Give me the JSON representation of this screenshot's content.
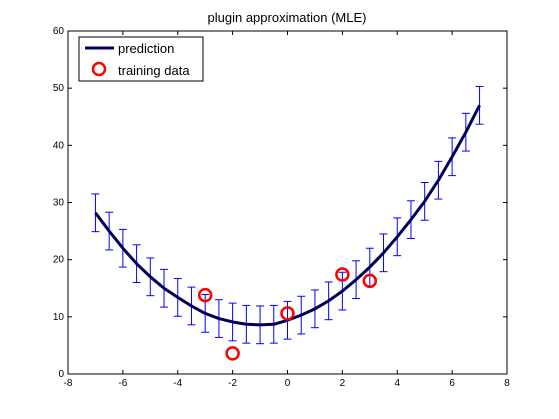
{
  "chart_data": {
    "type": "line",
    "title": "plugin approximation (MLE)",
    "xlabel": "",
    "ylabel": "",
    "xlim": [
      -8,
      8
    ],
    "ylim": [
      0,
      60
    ],
    "xticks": [
      -8,
      -6,
      -4,
      -2,
      0,
      2,
      4,
      6,
      8
    ],
    "yticks": [
      0,
      10,
      20,
      30,
      40,
      50,
      60
    ],
    "grid": false,
    "legend_position": "top-left",
    "series": [
      {
        "name": "prediction",
        "style": "line-with-errorbars",
        "color": "#00005a",
        "errorbar_color": "#0000ff",
        "x": [
          -7.0,
          -6.5,
          -6.0,
          -5.5,
          -5.0,
          -4.5,
          -4.0,
          -3.5,
          -3.0,
          -2.5,
          -2.0,
          -1.5,
          -1.0,
          -0.5,
          0.0,
          0.5,
          1.0,
          1.5,
          2.0,
          2.5,
          3.0,
          3.5,
          4.0,
          4.5,
          5.0,
          5.5,
          6.0,
          6.5,
          7.0
        ],
        "y": [
          28.2,
          25.0,
          22.0,
          19.3,
          17.0,
          15.0,
          13.4,
          11.9,
          10.6,
          9.7,
          9.1,
          8.7,
          8.6,
          8.7,
          9.4,
          10.3,
          11.4,
          12.8,
          14.5,
          16.5,
          18.7,
          21.2,
          24.0,
          27.0,
          30.2,
          33.9,
          38.0,
          42.3,
          47.0
        ],
        "yerr": [
          3.3,
          3.3,
          3.3,
          3.3,
          3.3,
          3.3,
          3.3,
          3.3,
          3.3,
          3.3,
          3.3,
          3.3,
          3.3,
          3.3,
          3.3,
          3.3,
          3.3,
          3.3,
          3.3,
          3.3,
          3.3,
          3.3,
          3.3,
          3.3,
          3.3,
          3.3,
          3.3,
          3.3,
          3.3
        ]
      },
      {
        "name": "training data",
        "style": "markers",
        "marker": "circle",
        "color": "#ff0000",
        "x": [
          -3,
          -2,
          0,
          2,
          3
        ],
        "y": [
          13.8,
          3.6,
          10.6,
          17.4,
          16.3
        ]
      }
    ]
  }
}
